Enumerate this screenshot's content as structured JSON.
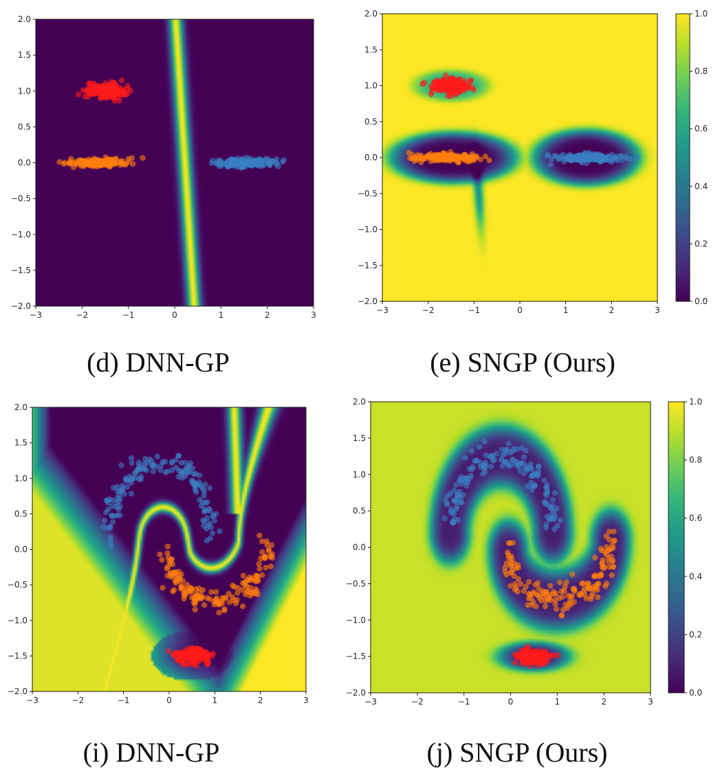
{
  "colormap": {
    "name": "viridis",
    "stops": [
      "#440154",
      "#482878",
      "#3e4989",
      "#31688e",
      "#26828e",
      "#1f9e89",
      "#35b779",
      "#6ece58",
      "#b5de2b",
      "#fde725"
    ]
  },
  "class_colors": {
    "red": "#ff1a1a",
    "orange": "#ff7f0e",
    "blue": "#3a7fc1"
  },
  "chart_data": [
    {
      "id": "d",
      "type": "heatmap",
      "caption": "(d) DNN-GP",
      "xlim": [
        -3,
        3
      ],
      "ylim": [
        -2,
        2
      ],
      "xticks": [
        "−3",
        "−2",
        "−1",
        "0",
        "1",
        "2",
        "3"
      ],
      "yticks": [
        "2.0",
        "1.5",
        "1.0",
        "0.5",
        "0.0",
        "−0.5",
        "−1.0",
        "−1.5",
        "−2.0"
      ],
      "field": "boundary_line",
      "clusters": [
        {
          "color": "red",
          "cx": -1.5,
          "cy": 1.0,
          "sx": 0.5,
          "sy": 0.1
        },
        {
          "color": "orange",
          "cx": -1.6,
          "cy": 0.0,
          "sx": 0.8,
          "sy": 0.05
        },
        {
          "color": "blue",
          "cx": 1.5,
          "cy": 0.0,
          "sx": 0.8,
          "sy": 0.05
        }
      ],
      "colorbar": false
    },
    {
      "id": "e",
      "type": "heatmap",
      "caption": "(e) SNGP (Ours)",
      "xlim": [
        -3,
        3
      ],
      "ylim": [
        -2,
        2
      ],
      "xticks": [
        "−3",
        "−2",
        "−1",
        "0",
        "1",
        "2",
        "3"
      ],
      "yticks": [
        "2.0",
        "1.5",
        "1.0",
        "0.5",
        "0.0",
        "−0.5",
        "−1.0",
        "−1.5",
        "−2.0"
      ],
      "field": "sngp_blobs",
      "clusters": [
        {
          "color": "red",
          "cx": -1.5,
          "cy": 1.0,
          "sx": 0.5,
          "sy": 0.1
        },
        {
          "color": "orange",
          "cx": -1.6,
          "cy": 0.0,
          "sx": 0.8,
          "sy": 0.05
        },
        {
          "color": "blue",
          "cx": 1.5,
          "cy": 0.0,
          "sx": 0.8,
          "sy": 0.05
        }
      ],
      "colorbar": true,
      "colorbar_ticks": [
        "1.0",
        "0.8",
        "0.6",
        "0.4",
        "0.2",
        "0.0"
      ]
    },
    {
      "id": "i",
      "type": "heatmap",
      "caption": "(i) DNN-GP",
      "xlim": [
        -3,
        3
      ],
      "ylim": [
        -2,
        2
      ],
      "xticks": [
        "−3",
        "−2",
        "−1",
        "0",
        "1",
        "2",
        "3"
      ],
      "yticks": [
        "2.0",
        "1.5",
        "1.0",
        "0.5",
        "0.0",
        "−0.5",
        "−1.0",
        "−1.5",
        "−2.0"
      ],
      "field": "dnn_moons",
      "clusters": [
        {
          "color": "red",
          "cx": 0.5,
          "cy": -1.5,
          "sx": 0.45,
          "sy": 0.1
        },
        {
          "color": "blue",
          "shape": "moon_upper"
        },
        {
          "color": "orange",
          "shape": "moon_lower"
        }
      ],
      "colorbar": false
    },
    {
      "id": "j",
      "type": "heatmap",
      "caption": "(j) SNGP (Ours)",
      "xlim": [
        -3,
        3
      ],
      "ylim": [
        -2,
        2
      ],
      "xticks": [
        "−3",
        "−2",
        "−1",
        "0",
        "1",
        "2",
        "3"
      ],
      "yticks": [
        "2.0",
        "1.5",
        "1.0",
        "0.5",
        "0.0",
        "−0.5",
        "−1.0",
        "−1.5",
        "−2.0"
      ],
      "field": "sngp_moons",
      "clusters": [
        {
          "color": "red",
          "cx": 0.5,
          "cy": -1.5,
          "sx": 0.45,
          "sy": 0.1
        },
        {
          "color": "blue",
          "shape": "moon_upper"
        },
        {
          "color": "orange",
          "shape": "moon_lower"
        }
      ],
      "colorbar": true,
      "colorbar_ticks": [
        "1.0",
        "0.8",
        "0.6",
        "0.4",
        "0.2",
        "0.0"
      ]
    }
  ]
}
